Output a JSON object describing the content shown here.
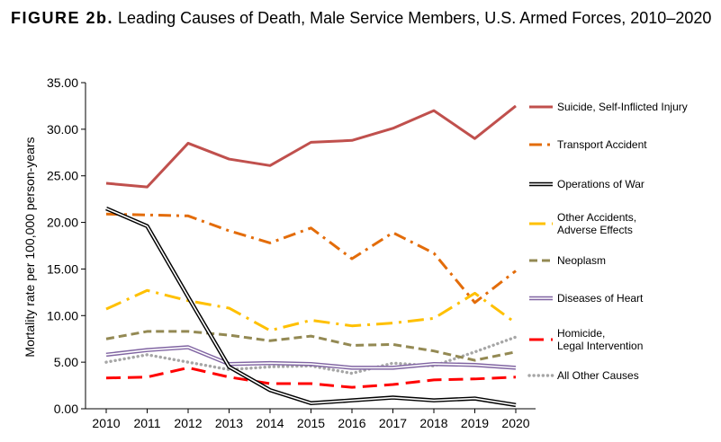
{
  "title": {
    "figure_label": "FIGURE 2b.",
    "text": "Leading Causes of Death, Male Service Members, U.S. Armed Forces, 2010–2020"
  },
  "chart_data": {
    "type": "line",
    "title": "Leading Causes of Death, Male Service Members, U.S. Armed Forces, 2010–2020",
    "xlabel": "",
    "ylabel": "Mortality rate per 100,000 person-years",
    "ylim": [
      0,
      35
    ],
    "yticks": [
      "0.00",
      "5.00",
      "10.00",
      "15.00",
      "20.00",
      "25.00",
      "30.00",
      "35.00"
    ],
    "categories": [
      "2010",
      "2011",
      "2012",
      "2013",
      "2014",
      "2015",
      "2016",
      "2017",
      "2018",
      "2019",
      "2020"
    ],
    "legend_position": "right",
    "grid": false,
    "series": [
      {
        "name": "Suicide, Self-Inflicted Injury",
        "color": "#c0504d",
        "style": "solid",
        "values": [
          24.2,
          23.8,
          28.5,
          26.8,
          26.1,
          28.6,
          28.8,
          30.1,
          32.0,
          29.0,
          32.5
        ]
      },
      {
        "name": "Transport Accident",
        "color": "#e36c09",
        "style": "dashdot",
        "values": [
          20.9,
          20.8,
          20.7,
          19.1,
          17.8,
          19.4,
          16.1,
          18.9,
          16.7,
          11.4,
          14.8
        ]
      },
      {
        "name": "Operations of War",
        "color": "#000000",
        "style": "double",
        "values": [
          21.5,
          19.6,
          12.0,
          4.5,
          2.0,
          0.6,
          0.9,
          1.2,
          0.9,
          1.1,
          0.4
        ]
      },
      {
        "name": "Other Accidents, Adverse Effects",
        "color": "#ffc000",
        "style": "longdashdot",
        "values": [
          10.7,
          12.7,
          11.6,
          10.8,
          8.4,
          9.5,
          8.9,
          9.2,
          9.7,
          12.4,
          9.2
        ]
      },
      {
        "name": "Neoplasm",
        "color": "#938953",
        "style": "dash",
        "values": [
          7.5,
          8.3,
          8.3,
          7.9,
          7.3,
          7.8,
          6.8,
          6.9,
          6.2,
          5.2,
          6.1
        ]
      },
      {
        "name": "Diseases of Heart",
        "color": "#8064a2",
        "style": "double",
        "values": [
          5.8,
          6.3,
          6.6,
          4.8,
          4.9,
          4.8,
          4.4,
          4.4,
          4.8,
          4.7,
          4.4
        ]
      },
      {
        "name": "Homicide, Legal Intervention",
        "color": "#ff0000",
        "style": "longdash",
        "values": [
          3.3,
          3.4,
          4.4,
          3.4,
          2.7,
          2.7,
          2.3,
          2.6,
          3.1,
          3.2,
          3.4
        ]
      },
      {
        "name": "All Other Causes",
        "color": "#a6a6a6",
        "style": "dot",
        "values": [
          5.0,
          5.8,
          5.0,
          4.2,
          4.5,
          4.6,
          3.8,
          4.9,
          4.6,
          6.1,
          7.7
        ]
      }
    ],
    "legend_labels": [
      [
        "Suicide, Self-Inflicted Injury"
      ],
      [
        "Transport Accident"
      ],
      [
        "Operations of War"
      ],
      [
        "Other Accidents,",
        "Adverse Effects"
      ],
      [
        "Neoplasm"
      ],
      [
        "Diseases of Heart"
      ],
      [
        "Homicide,",
        "Legal Intervention"
      ],
      [
        "All Other Causes"
      ]
    ]
  }
}
